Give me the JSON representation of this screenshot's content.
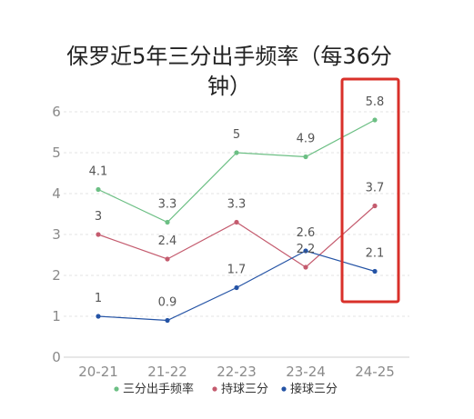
{
  "chart_data": {
    "type": "line",
    "title_lines": [
      "保罗近5年三分出手频率（每36分",
      "钟）"
    ],
    "categories": [
      "20-21",
      "21-22",
      "22-23",
      "23-24",
      "24-25"
    ],
    "ylim": [
      0,
      6
    ],
    "yticks": [
      0,
      1,
      2,
      3,
      4,
      5,
      6
    ],
    "grid": true,
    "legend_position": "bottom",
    "series": [
      {
        "name": "三分出手频率",
        "color": "#6cbf84",
        "values": [
          4.1,
          3.3,
          5,
          4.9,
          5.8
        ]
      },
      {
        "name": "持球三分",
        "color": "#c45b6e",
        "values": [
          3,
          2.4,
          3.3,
          2.2,
          3.7
        ]
      },
      {
        "name": "接球三分",
        "color": "#2453a5",
        "values": [
          1,
          0.9,
          1.7,
          2.6,
          2.1
        ]
      }
    ],
    "highlight": {
      "category": "24-25",
      "color": "#d9302a"
    }
  }
}
